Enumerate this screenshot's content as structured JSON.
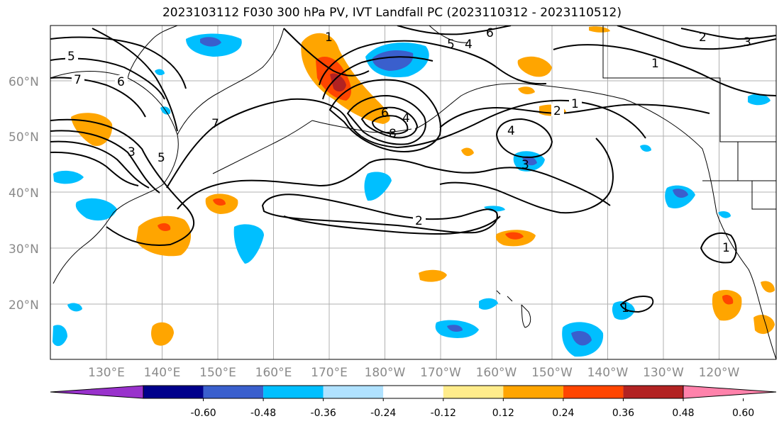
{
  "title": "2023103112 F030 300 hPa PV, IVT Landfall PC (2023110312 - 2023110512)",
  "map": {
    "lat_labels": [
      "60°N",
      "50°N",
      "40°N",
      "30°N",
      "20°N"
    ],
    "lon_labels": [
      "130°E",
      "140°E",
      "150°E",
      "160°E",
      "170°E",
      "180°W",
      "170°W",
      "160°W",
      "150°W",
      "140°W",
      "130°W",
      "120°W"
    ],
    "contour_labels": [
      "5",
      "7",
      "6",
      "7",
      "3",
      "5",
      "1",
      "6",
      "5",
      "4",
      "6",
      "8",
      "4",
      "2",
      "1",
      "3",
      "2",
      "1",
      "2",
      "3",
      "4",
      "1",
      "1"
    ]
  },
  "colorbar": {
    "colors": [
      "#9932cc",
      "#00008b",
      "#3a5fcd",
      "#00bfff",
      "#b0e2ff",
      "#ffffff",
      "#ffec8b",
      "#ffa500",
      "#ff4500",
      "#b22222",
      "#ff82ab"
    ],
    "tick_labels": [
      "-0.60",
      "-0.48",
      "-0.36",
      "-0.24",
      "-0.12",
      "0.12",
      "0.24",
      "0.36",
      "0.48",
      "0.60"
    ]
  }
}
